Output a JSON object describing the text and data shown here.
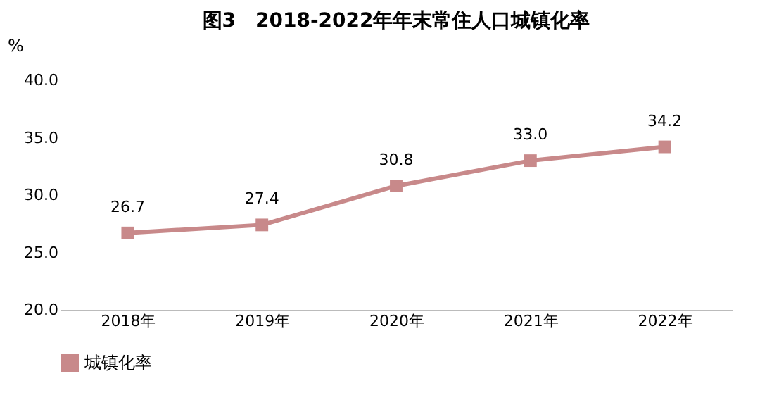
{
  "chart_data": {
    "type": "line",
    "title": "图3　2018-2022年年末常住人口城镇化率",
    "ylabel": "%",
    "categories": [
      "2018年",
      "2019年",
      "2020年",
      "2021年",
      "2022年"
    ],
    "series": [
      {
        "name": "城镇化率",
        "color": "#c8898a",
        "values": [
          26.7,
          27.4,
          30.8,
          33.0,
          34.2
        ],
        "value_labels": [
          "26.7",
          "27.4",
          "30.8",
          "33.0",
          "34.2"
        ]
      }
    ],
    "ylim": [
      20,
      40
    ],
    "yticks": [
      {
        "value": 20,
        "label": "20.0"
      },
      {
        "value": 25,
        "label": "25.0"
      },
      {
        "value": 30,
        "label": "30.0"
      },
      {
        "value": 35,
        "label": "35.0"
      },
      {
        "value": 40,
        "label": "40.0"
      }
    ],
    "grid": false,
    "legend": "bottom",
    "marker": "square",
    "line_style": "solid"
  }
}
